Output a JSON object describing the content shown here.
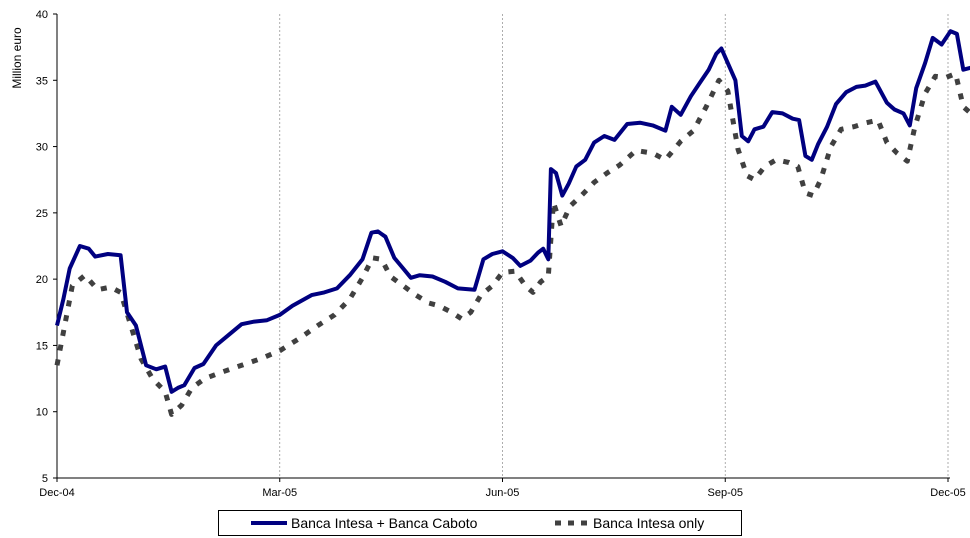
{
  "chart_data": {
    "type": "line",
    "ylabel": "Million euro",
    "xlabel": "",
    "ylim": [
      5,
      40
    ],
    "yticks": [
      5,
      10,
      15,
      20,
      25,
      30,
      35,
      40
    ],
    "xticks": [
      "Dec-04",
      "Mar-05",
      "Jun-05",
      "Sep-05",
      "Dec-05"
    ],
    "grid": "vertical",
    "legend_position": "bottom",
    "series": [
      {
        "name": "Banca Intesa + Banca Caboto",
        "color": "#000080",
        "style": "solid",
        "points": [
          [
            0.0,
            16.5
          ],
          [
            0.05,
            18.5
          ],
          [
            0.1,
            20.8
          ],
          [
            0.18,
            22.5
          ],
          [
            0.25,
            22.3
          ],
          [
            0.3,
            21.7
          ],
          [
            0.4,
            21.9
          ],
          [
            0.5,
            21.8
          ],
          [
            0.55,
            17.5
          ],
          [
            0.62,
            16.5
          ],
          [
            0.7,
            13.5
          ],
          [
            0.78,
            13.2
          ],
          [
            0.85,
            13.4
          ],
          [
            0.9,
            11.5
          ],
          [
            0.95,
            11.8
          ],
          [
            1.0,
            12.0
          ],
          [
            1.08,
            13.3
          ],
          [
            1.15,
            13.6
          ],
          [
            1.25,
            15.0
          ],
          [
            1.35,
            15.8
          ],
          [
            1.45,
            16.6
          ],
          [
            1.55,
            16.8
          ],
          [
            1.65,
            16.9
          ],
          [
            1.75,
            17.3
          ],
          [
            1.85,
            18.0
          ],
          [
            2.0,
            18.8
          ],
          [
            2.1,
            19.0
          ],
          [
            2.2,
            19.3
          ],
          [
            2.3,
            20.3
          ],
          [
            2.4,
            21.5
          ],
          [
            2.47,
            23.5
          ],
          [
            2.52,
            23.6
          ],
          [
            2.58,
            23.2
          ],
          [
            2.65,
            21.6
          ],
          [
            2.72,
            20.8
          ],
          [
            2.78,
            20.1
          ],
          [
            2.85,
            20.3
          ],
          [
            2.95,
            20.2
          ],
          [
            3.05,
            19.8
          ],
          [
            3.15,
            19.3
          ],
          [
            3.28,
            19.2
          ],
          [
            3.35,
            21.5
          ],
          [
            3.42,
            21.9
          ],
          [
            3.5,
            22.1
          ],
          [
            3.58,
            21.6
          ],
          [
            3.64,
            21.0
          ],
          [
            3.72,
            21.4
          ],
          [
            3.78,
            22.0
          ],
          [
            3.82,
            22.3
          ],
          [
            3.86,
            21.5
          ],
          [
            3.88,
            28.3
          ],
          [
            3.92,
            28.0
          ],
          [
            3.97,
            26.3
          ],
          [
            4.02,
            27.2
          ],
          [
            4.08,
            28.5
          ],
          [
            4.15,
            29.0
          ],
          [
            4.22,
            30.3
          ],
          [
            4.3,
            30.8
          ],
          [
            4.38,
            30.5
          ],
          [
            4.48,
            31.7
          ],
          [
            4.58,
            31.8
          ],
          [
            4.68,
            31.6
          ],
          [
            4.78,
            31.2
          ],
          [
            4.83,
            33.0
          ],
          [
            4.9,
            32.4
          ],
          [
            4.98,
            33.8
          ],
          [
            5.05,
            34.8
          ],
          [
            5.12,
            35.8
          ],
          [
            5.18,
            37.0
          ],
          [
            5.22,
            37.4
          ],
          [
            5.27,
            36.3
          ],
          [
            5.33,
            35.0
          ],
          [
            5.38,
            30.8
          ],
          [
            5.43,
            30.4
          ],
          [
            5.48,
            31.3
          ],
          [
            5.55,
            31.5
          ],
          [
            5.62,
            32.6
          ],
          [
            5.7,
            32.5
          ],
          [
            5.78,
            32.1
          ],
          [
            5.83,
            32.0
          ],
          [
            5.88,
            29.3
          ],
          [
            5.93,
            29.0
          ],
          [
            5.98,
            30.2
          ],
          [
            6.05,
            31.5
          ],
          [
            6.12,
            33.2
          ],
          [
            6.2,
            34.1
          ],
          [
            6.28,
            34.5
          ],
          [
            6.35,
            34.6
          ],
          [
            6.43,
            34.9
          ],
          [
            6.52,
            33.3
          ],
          [
            6.58,
            32.8
          ],
          [
            6.65,
            32.5
          ],
          [
            6.7,
            31.6
          ],
          [
            6.75,
            34.4
          ],
          [
            6.82,
            36.3
          ],
          [
            6.88,
            38.2
          ],
          [
            6.95,
            37.7
          ],
          [
            7.02,
            38.7
          ],
          [
            7.07,
            38.5
          ],
          [
            7.12,
            35.8
          ],
          [
            7.2,
            36.0
          ],
          [
            7.26,
            36.4
          ],
          [
            7.3,
            36.6
          ]
        ]
      },
      {
        "name": "Banca Intesa only",
        "color": "#404040",
        "style": "dashed",
        "points": [
          [
            0.0,
            13.5
          ],
          [
            0.05,
            16.0
          ],
          [
            0.12,
            19.5
          ],
          [
            0.22,
            20.3
          ],
          [
            0.32,
            19.2
          ],
          [
            0.42,
            19.4
          ],
          [
            0.5,
            19.0
          ],
          [
            0.58,
            16.5
          ],
          [
            0.66,
            14.0
          ],
          [
            0.75,
            12.5
          ],
          [
            0.85,
            11.5
          ],
          [
            0.9,
            9.8
          ],
          [
            0.98,
            10.5
          ],
          [
            1.06,
            11.8
          ],
          [
            1.16,
            12.5
          ],
          [
            1.3,
            13.0
          ],
          [
            1.45,
            13.5
          ],
          [
            1.6,
            14.0
          ],
          [
            1.75,
            14.6
          ],
          [
            1.9,
            15.5
          ],
          [
            2.05,
            16.5
          ],
          [
            2.18,
            17.3
          ],
          [
            2.3,
            18.5
          ],
          [
            2.4,
            20.1
          ],
          [
            2.48,
            21.6
          ],
          [
            2.55,
            21.5
          ],
          [
            2.62,
            20.2
          ],
          [
            2.72,
            19.5
          ],
          [
            2.82,
            18.8
          ],
          [
            2.92,
            18.2
          ],
          [
            3.0,
            18.0
          ],
          [
            3.1,
            17.5
          ],
          [
            3.18,
            17.0
          ],
          [
            3.25,
            17.5
          ],
          [
            3.33,
            18.8
          ],
          [
            3.42,
            19.5
          ],
          [
            3.5,
            20.5
          ],
          [
            3.6,
            20.6
          ],
          [
            3.68,
            19.5
          ],
          [
            3.74,
            19.0
          ],
          [
            3.8,
            19.8
          ],
          [
            3.86,
            20.2
          ],
          [
            3.9,
            25.8
          ],
          [
            3.96,
            24.0
          ],
          [
            4.03,
            25.5
          ],
          [
            4.12,
            26.3
          ],
          [
            4.22,
            27.3
          ],
          [
            4.32,
            28.0
          ],
          [
            4.42,
            28.6
          ],
          [
            4.55,
            29.7
          ],
          [
            4.68,
            29.5
          ],
          [
            4.78,
            29.0
          ],
          [
            4.9,
            30.4
          ],
          [
            5.0,
            31.2
          ],
          [
            5.1,
            33.0
          ],
          [
            5.2,
            35.0
          ],
          [
            5.27,
            34.2
          ],
          [
            5.35,
            29.8
          ],
          [
            5.42,
            27.8
          ],
          [
            5.48,
            27.5
          ],
          [
            5.56,
            28.5
          ],
          [
            5.65,
            29.0
          ],
          [
            5.75,
            28.8
          ],
          [
            5.82,
            28.5
          ],
          [
            5.88,
            26.5
          ],
          [
            5.94,
            26.3
          ],
          [
            6.0,
            27.5
          ],
          [
            6.08,
            30.0
          ],
          [
            6.16,
            31.3
          ],
          [
            6.26,
            31.5
          ],
          [
            6.36,
            31.8
          ],
          [
            6.45,
            32.0
          ],
          [
            6.52,
            30.3
          ],
          [
            6.6,
            29.5
          ],
          [
            6.68,
            28.9
          ],
          [
            6.74,
            31.5
          ],
          [
            6.82,
            34.0
          ],
          [
            6.9,
            35.3
          ],
          [
            6.98,
            35.2
          ],
          [
            7.06,
            35.5
          ],
          [
            7.12,
            33.0
          ],
          [
            7.18,
            32.5
          ],
          [
            7.24,
            33.3
          ],
          [
            7.3,
            33.5
          ]
        ]
      }
    ]
  },
  "legend": {
    "items": [
      {
        "label": "Banca Intesa + Banca Caboto",
        "color": "#000080",
        "style": "solid"
      },
      {
        "label": "Banca Intesa only",
        "color": "#404040",
        "style": "dashed"
      }
    ]
  }
}
